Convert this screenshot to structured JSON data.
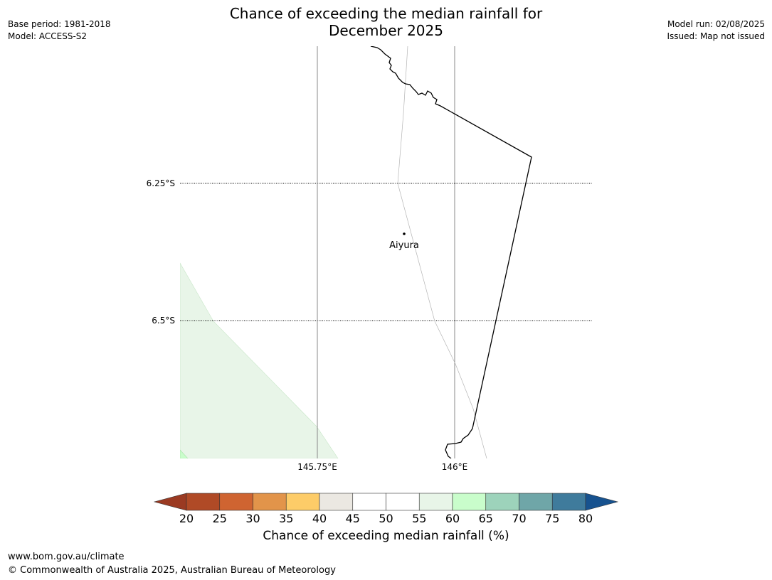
{
  "title_line1": "Chance of exceeding the median rainfall for",
  "title_line2": "December 2025",
  "meta_left": {
    "base_period": "Base period: 1981-2018",
    "model": "Model: ACCESS-S2"
  },
  "meta_right": {
    "model_run": "Model run: 02/08/2025",
    "issued": "Issued: Map not issued"
  },
  "map": {
    "latitude_labels": [
      "6.25°S",
      "6.5°S"
    ],
    "longitude_labels": [
      "145.75°E",
      "146°E"
    ],
    "place": "Aiyura"
  },
  "colorbar": {
    "title": "Chance of exceeding median rainfall (%)",
    "ticks": [
      "20",
      "25",
      "30",
      "35",
      "40",
      "45",
      "50",
      "55",
      "60",
      "65",
      "70",
      "75",
      "80"
    ],
    "under_color": "#9b3a22",
    "over_color": "#17528f",
    "colors": [
      "#b04a26",
      "#cf6431",
      "#e2944a",
      "#fdcc68",
      "#ebe8e2",
      "#ffffff",
      "#ffffff",
      "#e8f5e8",
      "#c9fdcb",
      "#9dd3bb",
      "#6fa6a8",
      "#3f7b9c"
    ]
  },
  "footer": {
    "url": "www.bom.gov.au/climate",
    "copyright": "© Commonwealth of Australia 2025, Australian Bureau of Meteorology"
  }
}
